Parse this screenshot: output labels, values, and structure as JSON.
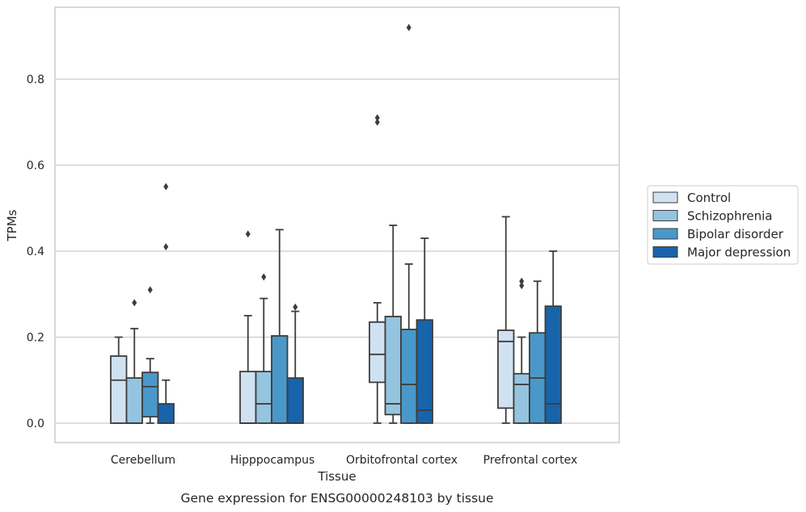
{
  "chart_data": {
    "type": "boxplot",
    "xlabel": "Tissue",
    "ylabel": "TPMs",
    "caption": "Gene expression for ENSG00000248103 by tissue",
    "categories": [
      "Cerebellum",
      "Hipppocampus",
      "Orbitofrontal cortex",
      "Prefrontal cortex"
    ],
    "ylim": [
      -0.045,
      0.968
    ],
    "yticks": [
      0.0,
      0.2,
      0.4,
      0.6,
      0.8
    ],
    "ytick_labels": [
      "0.0",
      "0.2",
      "0.4",
      "0.6",
      "0.8"
    ],
    "grid": "horizontal",
    "legend_position": "center-right",
    "series": [
      {
        "name": "Control",
        "color": "#d0e1f2",
        "boxes": [
          {
            "whislo": 0.0,
            "q1": 0.0,
            "med": 0.1,
            "q3": 0.156,
            "whishi": 0.2,
            "fliers": []
          },
          {
            "whislo": 0.0,
            "q1": 0.0,
            "med": 0.0,
            "q3": 0.12,
            "whishi": 0.25,
            "fliers": [
              0.44
            ]
          },
          {
            "whislo": 0.0,
            "q1": 0.095,
            "med": 0.16,
            "q3": 0.235,
            "whishi": 0.28,
            "fliers": [
              0.7,
              0.71
            ]
          },
          {
            "whislo": 0.0,
            "q1": 0.035,
            "med": 0.19,
            "q3": 0.216,
            "whishi": 0.48,
            "fliers": []
          }
        ]
      },
      {
        "name": "Schizophrenia",
        "color": "#94c4df",
        "boxes": [
          {
            "whislo": 0.0,
            "q1": 0.0,
            "med": 0.0,
            "q3": 0.105,
            "whishi": 0.22,
            "fliers": [
              0.28
            ]
          },
          {
            "whislo": 0.0,
            "q1": 0.0,
            "med": 0.045,
            "q3": 0.12,
            "whishi": 0.29,
            "fliers": [
              0.34
            ]
          },
          {
            "whislo": 0.0,
            "q1": 0.02,
            "med": 0.045,
            "q3": 0.248,
            "whishi": 0.46,
            "fliers": []
          },
          {
            "whislo": 0.0,
            "q1": 0.0,
            "med": 0.09,
            "q3": 0.115,
            "whishi": 0.2,
            "fliers": [
              0.32,
              0.33
            ]
          }
        ]
      },
      {
        "name": "Bipolar disorder",
        "color": "#4a98c9",
        "boxes": [
          {
            "whislo": 0.0,
            "q1": 0.015,
            "med": 0.085,
            "q3": 0.118,
            "whishi": 0.15,
            "fliers": [
              0.31
            ]
          },
          {
            "whislo": 0.0,
            "q1": 0.0,
            "med": 0.0,
            "q3": 0.203,
            "whishi": 0.45,
            "fliers": []
          },
          {
            "whislo": 0.0,
            "q1": 0.0,
            "med": 0.09,
            "q3": 0.218,
            "whishi": 0.37,
            "fliers": [
              0.92
            ]
          },
          {
            "whislo": 0.0,
            "q1": 0.0,
            "med": 0.105,
            "q3": 0.21,
            "whishi": 0.33,
            "fliers": []
          }
        ]
      },
      {
        "name": "Major depression",
        "color": "#1764ab",
        "boxes": [
          {
            "whislo": 0.0,
            "q1": 0.0,
            "med": 0.0,
            "q3": 0.045,
            "whishi": 0.1,
            "fliers": [
              0.41,
              0.55
            ]
          },
          {
            "whislo": 0.0,
            "q1": 0.0,
            "med": 0.0,
            "q3": 0.105,
            "whishi": 0.26,
            "fliers": [
              0.27
            ]
          },
          {
            "whislo": 0.0,
            "q1": 0.0,
            "med": 0.03,
            "q3": 0.24,
            "whishi": 0.43,
            "fliers": []
          },
          {
            "whislo": 0.0,
            "q1": 0.0,
            "med": 0.045,
            "q3": 0.272,
            "whishi": 0.4,
            "fliers": []
          }
        ]
      }
    ]
  },
  "colors": {
    "box_edge": "#3d3d3d",
    "grid": "#cccccc",
    "frame": "#cccccc",
    "text": "#262626"
  }
}
